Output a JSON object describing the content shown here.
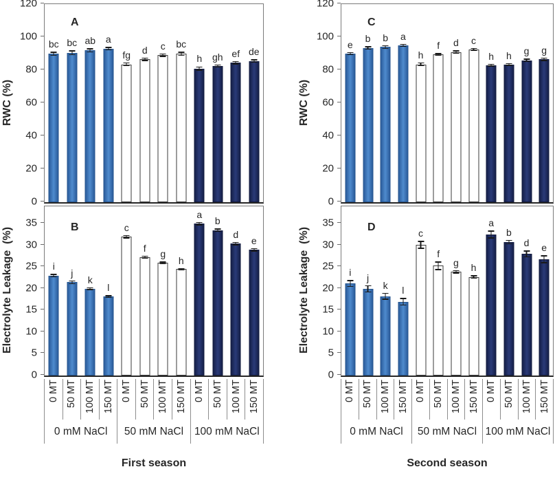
{
  "figure": {
    "columns": [
      {
        "season_label": "First season",
        "panel_ids": [
          "A",
          "B"
        ]
      },
      {
        "season_label": "Second season",
        "panel_ids": [
          "C",
          "D"
        ]
      }
    ],
    "x_axis": {
      "tick_labels": [
        "0 MT",
        "50 MT",
        "100 MT",
        "150 MT"
      ],
      "group_labels": [
        "0 mM NaCl",
        "50 mM NaCl",
        "100 mM NaCl"
      ]
    },
    "colors": {
      "bar_light_blue": "#3B76BC",
      "bar_light_blue_light": "#4F8BCE",
      "bar_light_blue_dark": "#2B5D9C",
      "bar_light_blue_border": "#27568F",
      "bar_white": "#FFFFFF",
      "bar_white_border": "#3A3A3A",
      "bar_navy": "#1F2A5B",
      "bar_navy_light": "#2A3A78",
      "bar_navy_dark": "#16204A",
      "bar_navy_border": "#121A3D",
      "frame": "#7A7A7A",
      "error_bar": "#1A1A1A",
      "text": "#262626"
    }
  },
  "chart_data": [
    {
      "id": "A",
      "type": "bar",
      "season": "First season",
      "ylabel": "RWC (%)",
      "ylim": [
        0,
        120
      ],
      "yticks": [
        0,
        20,
        40,
        60,
        80,
        100,
        120
      ],
      "categories": [
        "0 MT",
        "50 MT",
        "100 MT",
        "150 MT"
      ],
      "groups": [
        {
          "label": "0 mM NaCl",
          "fill": "light_blue",
          "bars": [
            {
              "category": "0 MT",
              "value": 90,
              "error": 1.2,
              "letter": "bc"
            },
            {
              "category": "50 MT",
              "value": 90.5,
              "error": 1.5,
              "letter": "bc"
            },
            {
              "category": "100 MT",
              "value": 92,
              "error": 1.2,
              "letter": "ab"
            },
            {
              "category": "150 MT",
              "value": 93,
              "error": 1.0,
              "letter": "a"
            }
          ]
        },
        {
          "label": "50 mM NaCl",
          "fill": "white",
          "bars": [
            {
              "category": "0 MT",
              "value": 83.5,
              "error": 1.2,
              "letter": "fg"
            },
            {
              "category": "50 MT",
              "value": 86.5,
              "error": 1.0,
              "letter": "d"
            },
            {
              "category": "100 MT",
              "value": 89,
              "error": 1.0,
              "letter": "c"
            },
            {
              "category": "150 MT",
              "value": 90,
              "error": 1.2,
              "letter": "bc"
            }
          ]
        },
        {
          "label": "100 mM NaCl",
          "fill": "navy",
          "bars": [
            {
              "category": "0 MT",
              "value": 81,
              "error": 1.3,
              "letter": "h"
            },
            {
              "category": "50 MT",
              "value": 82.5,
              "error": 1.0,
              "letter": "gh"
            },
            {
              "category": "100 MT",
              "value": 84.5,
              "error": 1.0,
              "letter": "ef"
            },
            {
              "category": "150 MT",
              "value": 85.5,
              "error": 1.0,
              "letter": "de"
            }
          ]
        }
      ]
    },
    {
      "id": "B",
      "type": "bar",
      "season": "First season",
      "ylabel": "Electrolyte Leakage  (%)",
      "ylim": [
        0,
        39
      ],
      "yticks": [
        0,
        5,
        10,
        15,
        20,
        25,
        30,
        35
      ],
      "categories": [
        "0 MT",
        "50 MT",
        "100 MT",
        "150 MT"
      ],
      "groups": [
        {
          "label": "0 mM NaCl",
          "fill": "light_blue",
          "bars": [
            {
              "category": "0 MT",
              "value": 23,
              "error": 0.4,
              "letter": "i"
            },
            {
              "category": "50 MT",
              "value": 21.5,
              "error": 0.4,
              "letter": "j"
            },
            {
              "category": "100 MT",
              "value": 20,
              "error": 0.3,
              "letter": "k"
            },
            {
              "category": "150 MT",
              "value": 18.2,
              "error": 0.3,
              "letter": "l"
            }
          ]
        },
        {
          "label": "50 mM NaCl",
          "fill": "white",
          "bars": [
            {
              "category": "0 MT",
              "value": 32,
              "error": 0.4,
              "letter": "c"
            },
            {
              "category": "50 MT",
              "value": 27.3,
              "error": 0.3,
              "letter": "f"
            },
            {
              "category": "100 MT",
              "value": 26,
              "error": 0.3,
              "letter": "g"
            },
            {
              "category": "150 MT",
              "value": 24.5,
              "error": 0.3,
              "letter": "h"
            }
          ]
        },
        {
          "label": "100 mM NaCl",
          "fill": "navy",
          "bars": [
            {
              "category": "0 MT",
              "value": 35,
              "error": 0.4,
              "letter": "a"
            },
            {
              "category": "50 MT",
              "value": 33.5,
              "error": 0.4,
              "letter": "b"
            },
            {
              "category": "100 MT",
              "value": 30.4,
              "error": 0.4,
              "letter": "d"
            },
            {
              "category": "150 MT",
              "value": 29,
              "error": 0.4,
              "letter": "e"
            }
          ]
        }
      ]
    },
    {
      "id": "C",
      "type": "bar",
      "season": "Second season",
      "ylabel": "RWC (%)",
      "ylim": [
        0,
        120
      ],
      "yticks": [
        0,
        20,
        40,
        60,
        80,
        100,
        120
      ],
      "categories": [
        "0 MT",
        "50 MT",
        "100 MT",
        "150 MT"
      ],
      "groups": [
        {
          "label": "0 mM NaCl",
          "fill": "light_blue",
          "bars": [
            {
              "category": "0 MT",
              "value": 90,
              "error": 1.0,
              "letter": "e"
            },
            {
              "category": "50 MT",
              "value": 93.5,
              "error": 1.0,
              "letter": "b"
            },
            {
              "category": "100 MT",
              "value": 94,
              "error": 1.2,
              "letter": "b"
            },
            {
              "category": "150 MT",
              "value": 95,
              "error": 1.0,
              "letter": "a"
            }
          ]
        },
        {
          "label": "50 mM NaCl",
          "fill": "white",
          "bars": [
            {
              "category": "0 MT",
              "value": 83.5,
              "error": 1.2,
              "letter": "h"
            },
            {
              "category": "50 MT",
              "value": 89.5,
              "error": 0.8,
              "letter": "f"
            },
            {
              "category": "100 MT",
              "value": 91,
              "error": 1.0,
              "letter": "d"
            },
            {
              "category": "150 MT",
              "value": 92.5,
              "error": 1.0,
              "letter": "c"
            }
          ]
        },
        {
          "label": "100 mM NaCl",
          "fill": "navy",
          "bars": [
            {
              "category": "0 MT",
              "value": 83,
              "error": 0.8,
              "letter": "h"
            },
            {
              "category": "50 MT",
              "value": 83.5,
              "error": 0.8,
              "letter": "h"
            },
            {
              "category": "100 MT",
              "value": 86,
              "error": 1.0,
              "letter": "g"
            },
            {
              "category": "150 MT",
              "value": 86.5,
              "error": 1.0,
              "letter": "g"
            }
          ]
        }
      ]
    },
    {
      "id": "D",
      "type": "bar",
      "season": "Second season",
      "ylabel": "Electrolyte Leakage  (%)",
      "ylim": [
        0,
        39
      ],
      "yticks": [
        0,
        5,
        10,
        15,
        20,
        25,
        30,
        35
      ],
      "categories": [
        "0 MT",
        "50 MT",
        "100 MT",
        "150 MT"
      ],
      "groups": [
        {
          "label": "0 mM NaCl",
          "fill": "light_blue",
          "bars": [
            {
              "category": "0 MT",
              "value": 21.2,
              "error": 0.8,
              "letter": "i"
            },
            {
              "category": "50 MT",
              "value": 20,
              "error": 0.8,
              "letter": "j"
            },
            {
              "category": "100 MT",
              "value": 18.3,
              "error": 0.8,
              "letter": "k"
            },
            {
              "category": "150 MT",
              "value": 17,
              "error": 0.9,
              "letter": "l"
            }
          ]
        },
        {
          "label": "50 mM NaCl",
          "fill": "white",
          "bars": [
            {
              "category": "0 MT",
              "value": 30.1,
              "error": 0.9,
              "letter": "c"
            },
            {
              "category": "50 MT",
              "value": 25.3,
              "error": 1.0,
              "letter": "f"
            },
            {
              "category": "100 MT",
              "value": 23.9,
              "error": 0.4,
              "letter": "g"
            },
            {
              "category": "150 MT",
              "value": 22.7,
              "error": 0.4,
              "letter": "h"
            }
          ]
        },
        {
          "label": "100 mM NaCl",
          "fill": "navy",
          "bars": [
            {
              "category": "0 MT",
              "value": 32.5,
              "error": 0.9,
              "letter": "a"
            },
            {
              "category": "50 MT",
              "value": 30.8,
              "error": 0.5,
              "letter": "b"
            },
            {
              "category": "100 MT",
              "value": 28,
              "error": 0.8,
              "letter": "d"
            },
            {
              "category": "150 MT",
              "value": 26.8,
              "error": 0.9,
              "letter": "e"
            }
          ]
        }
      ]
    }
  ]
}
